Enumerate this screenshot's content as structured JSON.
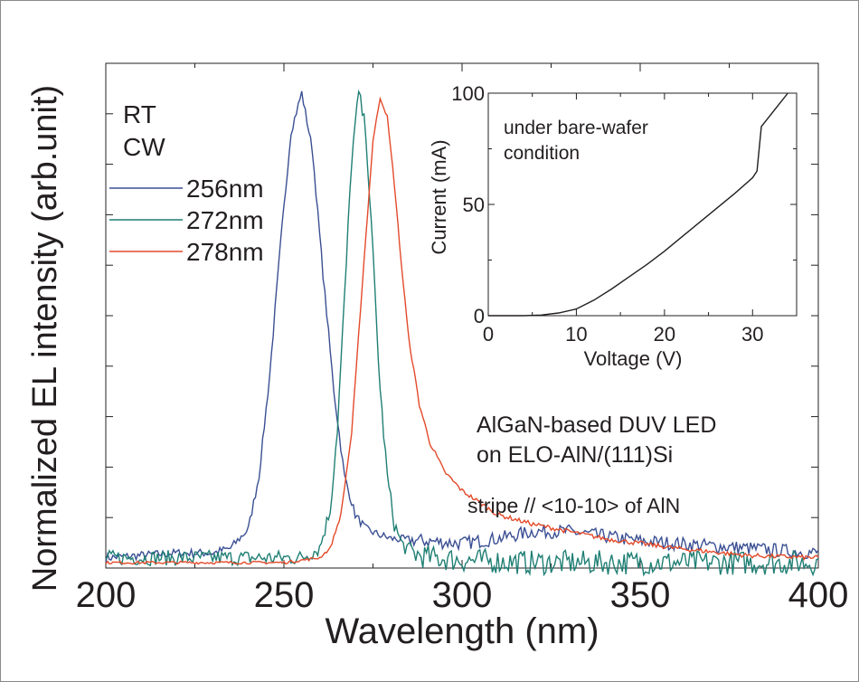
{
  "chart_data": [
    {
      "type": "line",
      "xlabel": "Wavelength (nm)",
      "ylabel": "Normalized EL intensity (arb.unit)",
      "xlim": [
        200,
        400
      ],
      "ylim": [
        0,
        1.0
      ],
      "x_ticks": [
        200,
        250,
        300,
        350,
        400
      ],
      "x_tick_labels": [
        "200",
        "250",
        "300",
        "350",
        "400"
      ],
      "y_tick_labels_shown": false,
      "grid": false,
      "legend": {
        "placement": "upper-left",
        "header": [
          "RT",
          "CW"
        ],
        "entries": [
          "256nm",
          "272nm",
          "278nm"
        ]
      },
      "annotations": [
        "AlGaN-based DUV LED",
        "on ELO-AlN/(111)Si",
        "stripe // <10-10> of AlN"
      ],
      "series": [
        {
          "name": "256nm",
          "color": "#3a4f93",
          "x": [
            200,
            220,
            230,
            235,
            240,
            243,
            246,
            249,
            252,
            255,
            258,
            261,
            264,
            267,
            270,
            273,
            276,
            280,
            290,
            300,
            310,
            320,
            330,
            340,
            350,
            360,
            370,
            380,
            390,
            400
          ],
          "y": [
            0.01,
            0.02,
            0.02,
            0.03,
            0.07,
            0.18,
            0.39,
            0.66,
            0.9,
            0.98,
            0.86,
            0.6,
            0.36,
            0.18,
            0.1,
            0.07,
            0.06,
            0.05,
            0.045,
            0.04,
            0.05,
            0.065,
            0.065,
            0.055,
            0.045,
            0.04,
            0.035,
            0.03,
            0.025,
            0.02
          ]
        },
        {
          "name": "272nm",
          "color": "#1f7f74",
          "x": [
            200,
            240,
            255,
            260,
            263,
            265,
            267,
            269,
            271,
            273,
            275,
            277,
            279,
            281,
            283,
            285,
            288,
            292,
            300,
            320,
            350,
            400
          ],
          "y": [
            0.01,
            0.01,
            0.01,
            0.03,
            0.11,
            0.28,
            0.55,
            0.84,
            0.98,
            0.9,
            0.64,
            0.36,
            0.18,
            0.08,
            0.04,
            0.025,
            0.015,
            0.01,
            0.005,
            0.0,
            0.0,
            0.0
          ]
        },
        {
          "name": "278nm",
          "color": "#e34a2a",
          "x": [
            200,
            250,
            260,
            263,
            266,
            269,
            272,
            275,
            277,
            279,
            281,
            283,
            285,
            288,
            291,
            295,
            300,
            310,
            320,
            340,
            360,
            380,
            400
          ],
          "y": [
            0.0,
            0.0,
            0.01,
            0.03,
            0.1,
            0.27,
            0.58,
            0.88,
            0.97,
            0.93,
            0.79,
            0.62,
            0.47,
            0.33,
            0.25,
            0.19,
            0.15,
            0.1,
            0.08,
            0.05,
            0.03,
            0.015,
            0.01
          ]
        }
      ]
    },
    {
      "type": "line",
      "xlabel": "Voltage (V)",
      "ylabel": "Current (mA)",
      "xlim": [
        0,
        35
      ],
      "ylim": [
        0,
        100
      ],
      "x_ticks": [
        0,
        10,
        20,
        30
      ],
      "x_tick_labels": [
        "0",
        "10",
        "20",
        "30"
      ],
      "y_ticks": [
        0,
        50,
        100
      ],
      "y_tick_labels": [
        "0",
        "50",
        "100"
      ],
      "grid": false,
      "annotations": [
        "under bare-wafer",
        "condition"
      ],
      "series": [
        {
          "color": "#231f20",
          "x": [
            0,
            4,
            6,
            8,
            10,
            12,
            14,
            16,
            18,
            20,
            22,
            24,
            26,
            28,
            30,
            30.5,
            31,
            32,
            33,
            34
          ],
          "y": [
            0,
            0,
            0.3,
            1.2,
            3,
            7,
            12,
            17.5,
            23,
            29,
            35.5,
            42,
            48.5,
            55,
            62,
            65,
            85,
            90,
            95,
            100
          ]
        }
      ]
    }
  ]
}
